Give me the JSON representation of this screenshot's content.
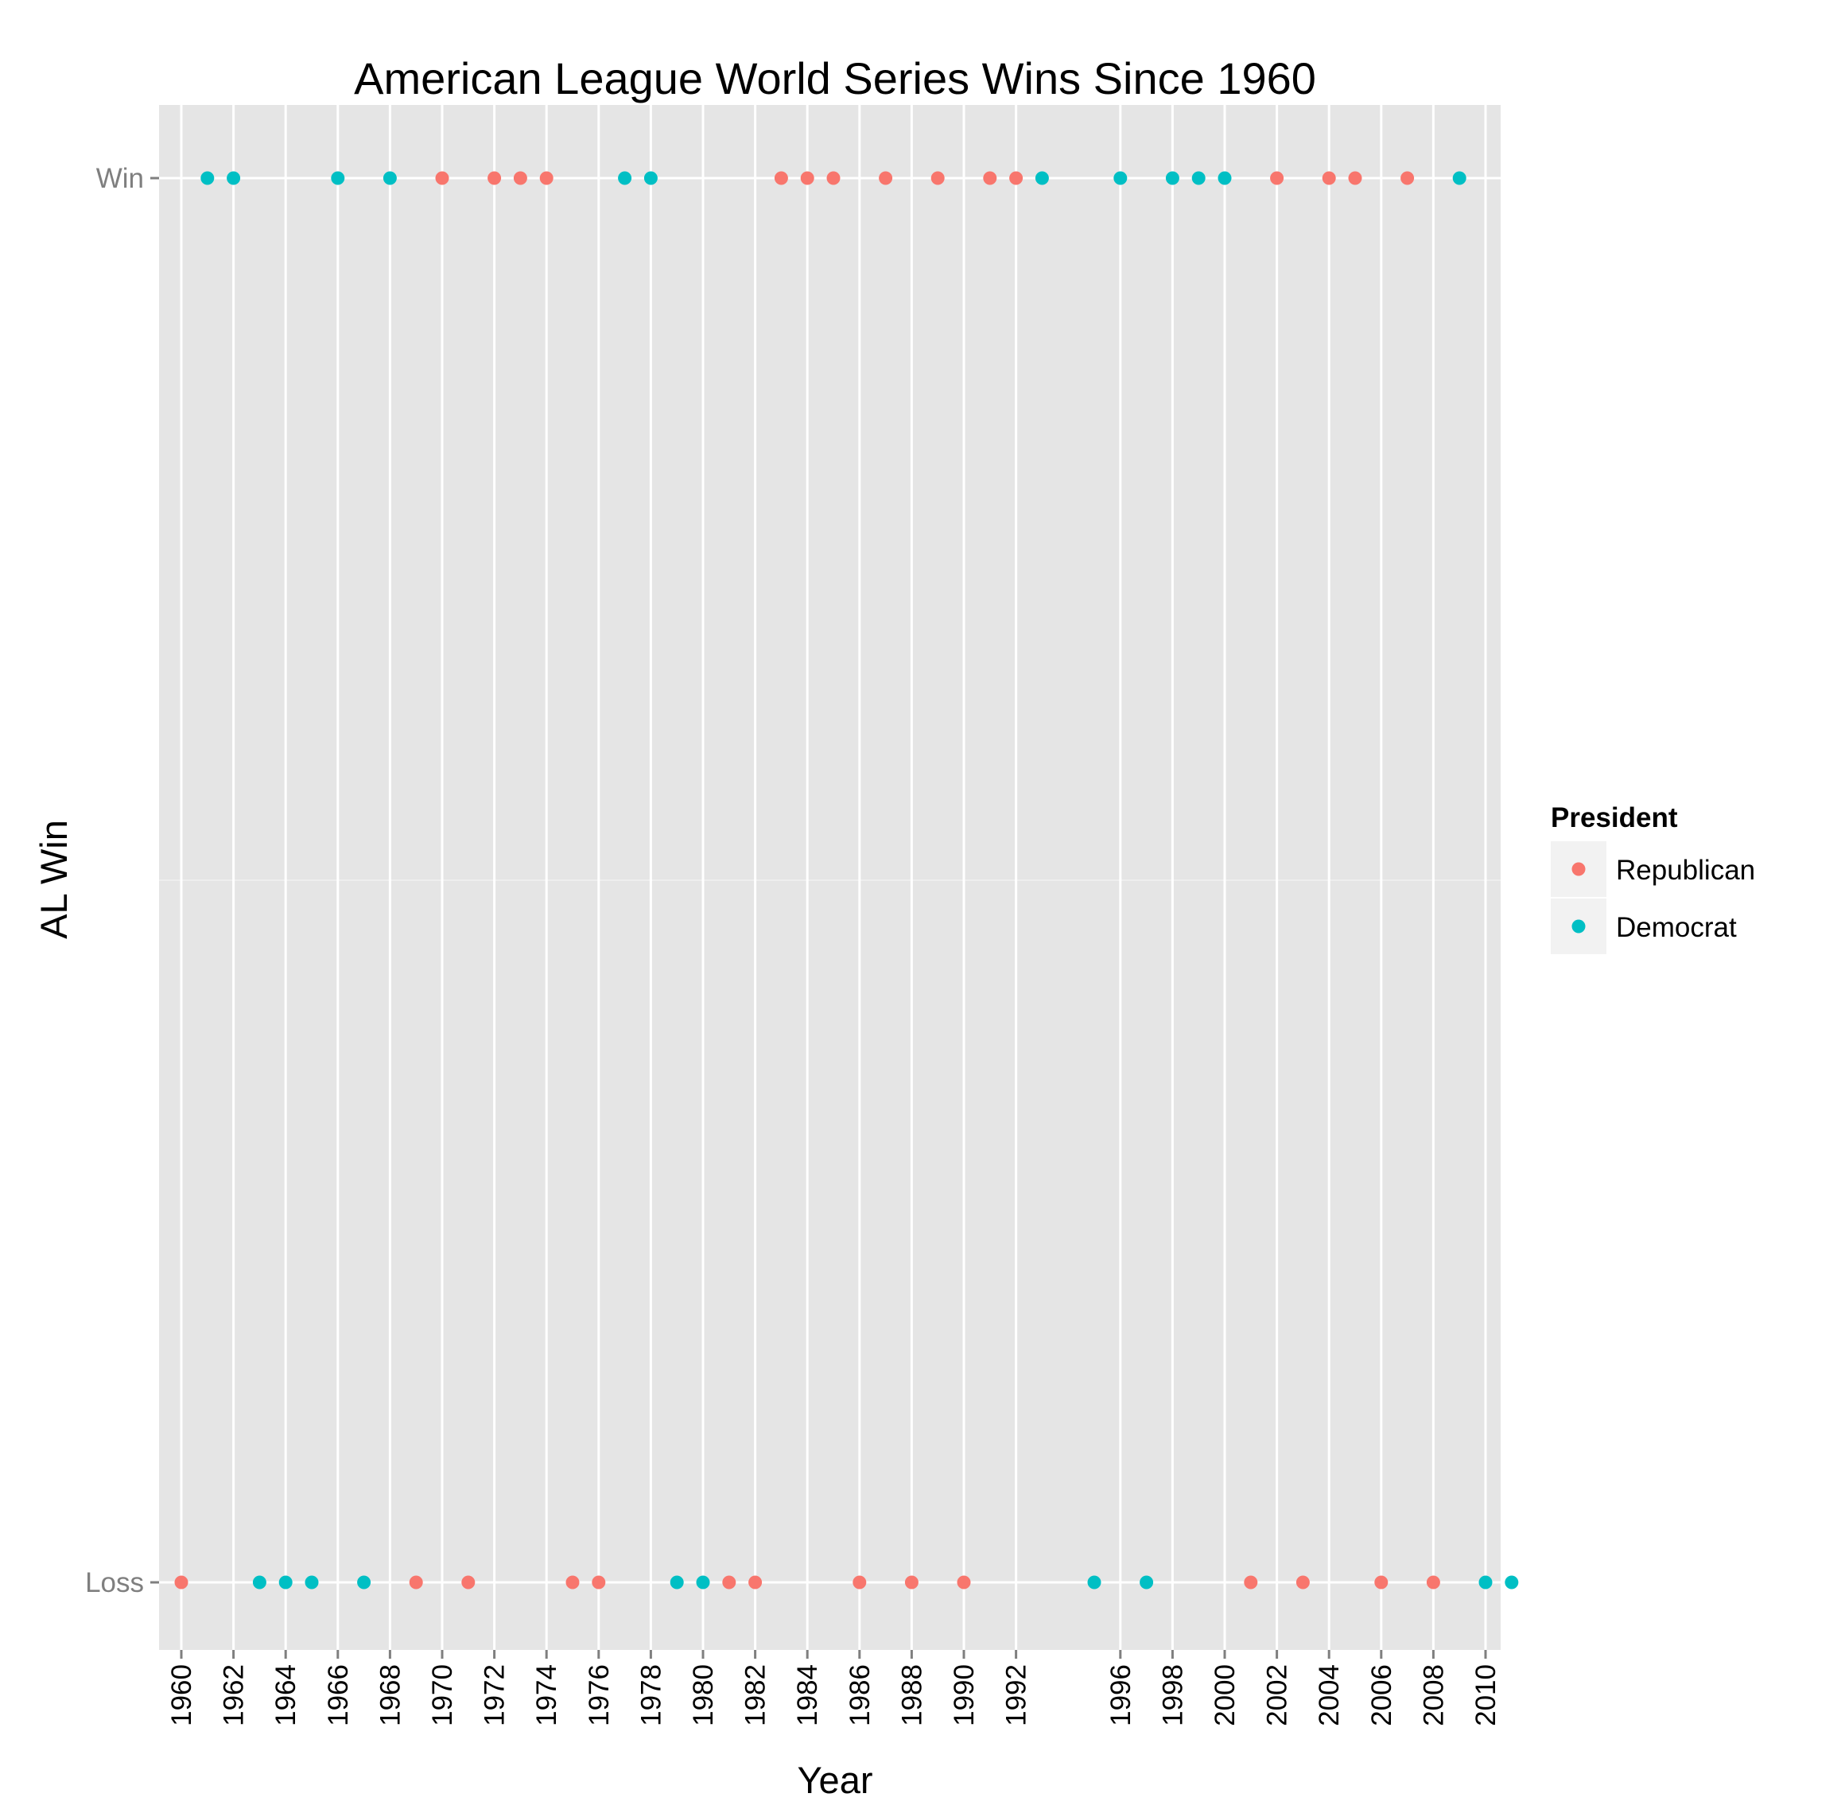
{
  "chart_data": {
    "type": "scatter",
    "title": "American League World Series Wins Since 1960",
    "xlabel": "Year",
    "ylabel": "AL Win",
    "y_categories": [
      "Loss",
      "Win"
    ],
    "x_ticks": [
      "1960",
      "1962",
      "1964",
      "1966",
      "1968",
      "1970",
      "1972",
      "1974",
      "1976",
      "1978",
      "1980",
      "1982",
      "1984",
      "1986",
      "1988",
      "1990",
      "1992",
      "1996",
      "1998",
      "2000",
      "2002",
      "2004",
      "2006",
      "2008",
      "2010"
    ],
    "x_range": [
      1960,
      2011
    ],
    "grid": true,
    "legend": {
      "title": "President",
      "position": "right"
    },
    "colors": {
      "Republican": "#f8766d",
      "Democrat": "#00bfc4",
      "panel": "#e5e5e5",
      "grid": "#ffffff"
    },
    "series": [
      {
        "name": "Republican",
        "points": [
          {
            "x": 1960,
            "y": "Loss"
          },
          {
            "x": 1969,
            "y": "Loss"
          },
          {
            "x": 1970,
            "y": "Win"
          },
          {
            "x": 1971,
            "y": "Loss"
          },
          {
            "x": 1972,
            "y": "Win"
          },
          {
            "x": 1973,
            "y": "Win"
          },
          {
            "x": 1974,
            "y": "Win"
          },
          {
            "x": 1975,
            "y": "Loss"
          },
          {
            "x": 1976,
            "y": "Loss"
          },
          {
            "x": 1981,
            "y": "Loss"
          },
          {
            "x": 1982,
            "y": "Loss"
          },
          {
            "x": 1983,
            "y": "Win"
          },
          {
            "x": 1984,
            "y": "Win"
          },
          {
            "x": 1985,
            "y": "Win"
          },
          {
            "x": 1986,
            "y": "Loss"
          },
          {
            "x": 1987,
            "y": "Win"
          },
          {
            "x": 1988,
            "y": "Loss"
          },
          {
            "x": 1989,
            "y": "Win"
          },
          {
            "x": 1990,
            "y": "Loss"
          },
          {
            "x": 1991,
            "y": "Win"
          },
          {
            "x": 1992,
            "y": "Win"
          },
          {
            "x": 2001,
            "y": "Loss"
          },
          {
            "x": 2002,
            "y": "Win"
          },
          {
            "x": 2003,
            "y": "Loss"
          },
          {
            "x": 2004,
            "y": "Win"
          },
          {
            "x": 2005,
            "y": "Win"
          },
          {
            "x": 2006,
            "y": "Loss"
          },
          {
            "x": 2007,
            "y": "Win"
          },
          {
            "x": 2008,
            "y": "Loss"
          }
        ]
      },
      {
        "name": "Democrat",
        "points": [
          {
            "x": 1961,
            "y": "Win"
          },
          {
            "x": 1962,
            "y": "Win"
          },
          {
            "x": 1963,
            "y": "Loss"
          },
          {
            "x": 1964,
            "y": "Loss"
          },
          {
            "x": 1965,
            "y": "Loss"
          },
          {
            "x": 1966,
            "y": "Win"
          },
          {
            "x": 1967,
            "y": "Loss"
          },
          {
            "x": 1968,
            "y": "Win"
          },
          {
            "x": 1977,
            "y": "Win"
          },
          {
            "x": 1978,
            "y": "Win"
          },
          {
            "x": 1979,
            "y": "Loss"
          },
          {
            "x": 1980,
            "y": "Loss"
          },
          {
            "x": 1993,
            "y": "Win"
          },
          {
            "x": 1995,
            "y": "Loss"
          },
          {
            "x": 1996,
            "y": "Win"
          },
          {
            "x": 1997,
            "y": "Loss"
          },
          {
            "x": 1998,
            "y": "Win"
          },
          {
            "x": 1999,
            "y": "Win"
          },
          {
            "x": 2000,
            "y": "Win"
          },
          {
            "x": 2009,
            "y": "Win"
          },
          {
            "x": 2010,
            "y": "Loss"
          },
          {
            "x": 2011,
            "y": "Loss"
          }
        ]
      }
    ]
  }
}
